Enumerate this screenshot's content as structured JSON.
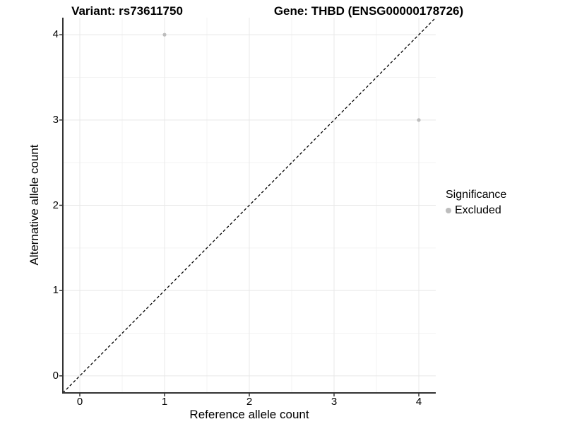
{
  "header": {
    "variant_title": "Variant: rs73611750",
    "gene_title": "Gene: THBD (ENSG00000178726)"
  },
  "legend": {
    "title": "Significance",
    "items": [
      {
        "label": "Excluded",
        "color": "#bdbdbd"
      }
    ]
  },
  "chart_data": {
    "type": "scatter",
    "title": "Variant: rs73611750 — Gene: THBD (ENSG00000178726)",
    "xlabel": "Reference allele count",
    "ylabel": "Alternative allele count",
    "xlim": [
      -0.2,
      4.2
    ],
    "ylim": [
      -0.2,
      4.2
    ],
    "xticks": [
      0,
      1,
      2,
      3,
      4
    ],
    "yticks": [
      0,
      1,
      2,
      3,
      4
    ],
    "minor_xticks": [
      0.5,
      1.5,
      2.5,
      3.5
    ],
    "minor_yticks": [
      0.5,
      1.5,
      2.5,
      3.5
    ],
    "grid": true,
    "legend_position": "right",
    "series": [
      {
        "name": "Excluded",
        "color": "#bdbdbd",
        "points": [
          {
            "x": 1,
            "y": 4
          },
          {
            "x": 4,
            "y": 3
          }
        ]
      }
    ],
    "reference_line": {
      "style": "dashed",
      "color": "#000000",
      "from": [
        -0.2,
        -0.2
      ],
      "to": [
        4.2,
        4.2
      ]
    }
  },
  "colors": {
    "background": "#ffffff",
    "grid_major": "#e8e8e8",
    "grid_minor": "#f3f3f3",
    "axis": "#333333",
    "point": "#bdbdbd",
    "dashed_line": "#000000"
  }
}
